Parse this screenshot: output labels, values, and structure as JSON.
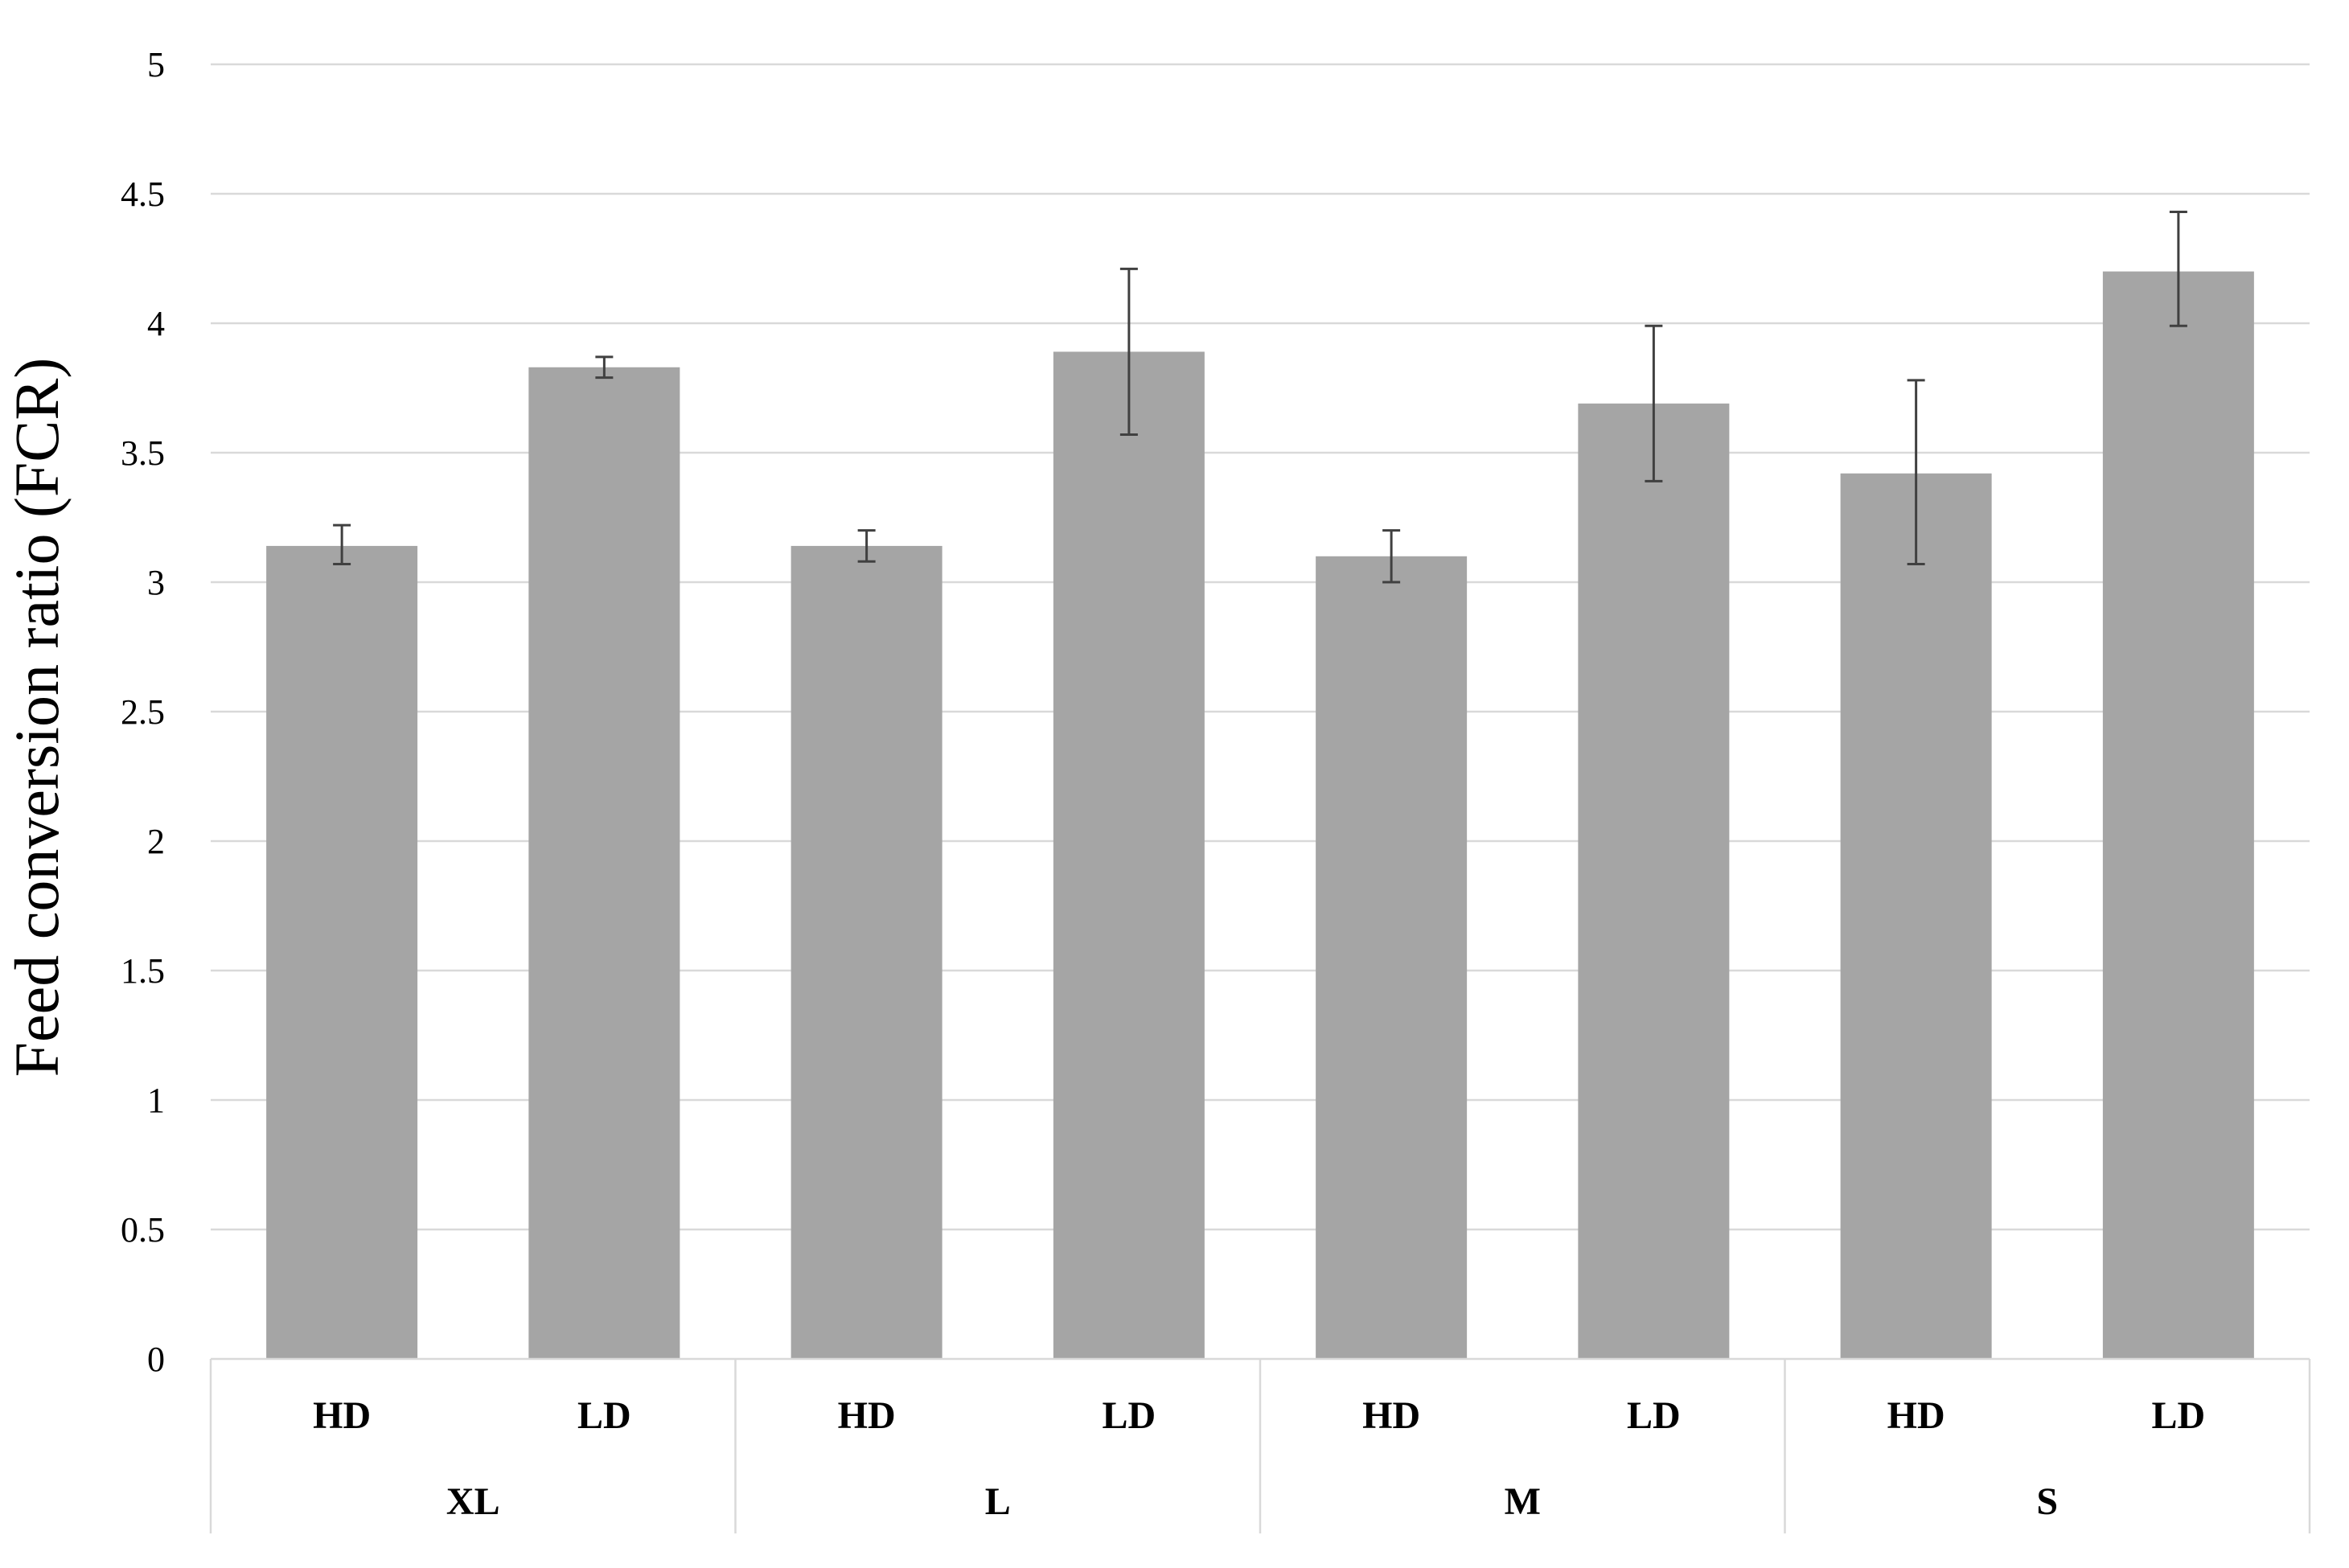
{
  "chart_data": {
    "type": "bar",
    "ylabel": "Feed conversion ratio (FCR)",
    "xlabel": "",
    "ylim": [
      0,
      5
    ],
    "yticks": [
      0,
      0.5,
      1,
      1.5,
      2,
      2.5,
      3,
      3.5,
      4,
      4.5,
      5
    ],
    "ytick_labels": [
      "0",
      "0.5",
      "1",
      "1.5",
      "2",
      "2.5",
      "3",
      "3.5",
      "4",
      "4.5",
      "5"
    ],
    "grid": true,
    "legend": "none",
    "groups": [
      {
        "label": "XL",
        "bars": [
          {
            "label": "HD",
            "value": 3.14,
            "err_low": 3.07,
            "err_high": 3.22
          },
          {
            "label": "LD",
            "value": 3.83,
            "err_low": 3.79,
            "err_high": 3.87
          }
        ]
      },
      {
        "label": "L",
        "bars": [
          {
            "label": "HD",
            "value": 3.14,
            "err_low": 3.08,
            "err_high": 3.2
          },
          {
            "label": "LD",
            "value": 3.89,
            "err_low": 3.57,
            "err_high": 4.21
          }
        ]
      },
      {
        "label": "M",
        "bars": [
          {
            "label": "HD",
            "value": 3.1,
            "err_low": 3.0,
            "err_high": 3.2
          },
          {
            "label": "LD",
            "value": 3.69,
            "err_low": 3.39,
            "err_high": 3.99
          }
        ]
      },
      {
        "label": "S",
        "bars": [
          {
            "label": "HD",
            "value": 3.42,
            "err_low": 3.07,
            "err_high": 3.78
          },
          {
            "label": "LD",
            "value": 4.2,
            "err_low": 3.99,
            "err_high": 4.43
          }
        ]
      }
    ]
  },
  "colors": {
    "bar": "#a5a5a5",
    "grid": "#d9d9d9",
    "error_bar": "#404040",
    "axis_text": "#000000"
  }
}
